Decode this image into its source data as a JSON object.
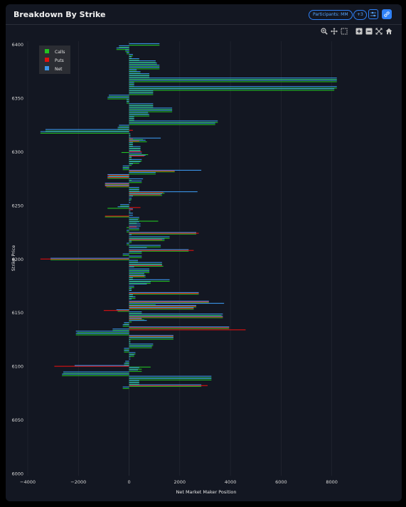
{
  "header": {
    "title": "Breakdown By Strike",
    "participants_label": "Participants: MM",
    "count_badge": "+3"
  },
  "toolbar": {
    "icons": [
      "zoom-in-icon",
      "pan-icon",
      "box-select-icon",
      "zoom-plus-icon",
      "zoom-minus-icon",
      "autoscale-icon",
      "home-icon"
    ]
  },
  "colors": {
    "calls": "#22c122",
    "puts": "#e01010",
    "net": "#3a95e8",
    "background": "#131722",
    "accent": "#2f81f7"
  },
  "chart_data": {
    "type": "bar",
    "orientation": "horizontal",
    "xlabel": "Net Market Maker Position",
    "ylabel": "Strike Price",
    "xlim": [
      -4000,
      10200
    ],
    "ylim": [
      5998,
      6403
    ],
    "xticks": [
      -4000,
      -2000,
      0,
      2000,
      4000,
      6000,
      8000
    ],
    "xtick_labels": [
      "−4000",
      "−2000",
      "0",
      "2000",
      "4000",
      "6000",
      "8000"
    ],
    "yticks": [
      6000,
      6050,
      6100,
      6150,
      6200,
      6250,
      6300,
      6350,
      6400
    ],
    "legend": {
      "placement": "top-left",
      "entries": [
        "Calls",
        "Puts",
        "Net"
      ]
    },
    "grid": true,
    "rows": [
      [
        6400,
        1200,
        0,
        1200
      ],
      [
        6398,
        -400,
        0,
        -400
      ],
      [
        6396,
        -500,
        0,
        -500
      ],
      [
        6394,
        -150,
        0,
        -150
      ],
      [
        6392,
        -100,
        0,
        -100
      ],
      [
        6390,
        150,
        0,
        150
      ],
      [
        6388,
        100,
        0,
        100
      ],
      [
        6386,
        400,
        0,
        400
      ],
      [
        6384,
        1050,
        0,
        1050
      ],
      [
        6382,
        1100,
        0,
        1100
      ],
      [
        6380,
        1200,
        0,
        1200
      ],
      [
        6378,
        1200,
        0,
        1200
      ],
      [
        6376,
        300,
        0,
        300
      ],
      [
        6374,
        450,
        0,
        450
      ],
      [
        6372,
        800,
        0,
        800
      ],
      [
        6370,
        800,
        0,
        800
      ],
      [
        6368,
        8200,
        0,
        8200
      ],
      [
        6366,
        8200,
        0,
        8200
      ],
      [
        6364,
        200,
        0,
        200
      ],
      [
        6362,
        200,
        0,
        200
      ],
      [
        6360,
        8200,
        0,
        8200
      ],
      [
        6358,
        8100,
        0,
        8100
      ],
      [
        6356,
        950,
        0,
        950
      ],
      [
        6354,
        950,
        0,
        950
      ],
      [
        6352,
        -800,
        0,
        -800
      ],
      [
        6350,
        -850,
        0,
        -850
      ],
      [
        6348,
        -100,
        0,
        -100
      ],
      [
        6346,
        -100,
        0,
        -100
      ],
      [
        6344,
        950,
        0,
        950
      ],
      [
        6342,
        950,
        0,
        950
      ],
      [
        6340,
        1700,
        0,
        1700
      ],
      [
        6338,
        1700,
        0,
        1700
      ],
      [
        6336,
        750,
        0,
        750
      ],
      [
        6334,
        800,
        0,
        800
      ],
      [
        6332,
        200,
        0,
        200
      ],
      [
        6330,
        200,
        0,
        200
      ],
      [
        6328,
        3500,
        0,
        3500
      ],
      [
        6326,
        3400,
        0,
        3400
      ],
      [
        6324,
        -400,
        0,
        -400
      ],
      [
        6322,
        -450,
        0,
        -450
      ],
      [
        6320,
        -3300,
        150,
        -3300
      ],
      [
        6318,
        -3500,
        0,
        -3500
      ],
      [
        6316,
        50,
        0,
        50
      ],
      [
        6314,
        50,
        0,
        50
      ],
      [
        6312,
        550,
        150,
        1250
      ],
      [
        6310,
        700,
        400,
        650
      ],
      [
        6308,
        150,
        0,
        150
      ],
      [
        6306,
        150,
        0,
        150
      ],
      [
        6304,
        450,
        0,
        450
      ],
      [
        6302,
        450,
        0,
        450
      ],
      [
        6300,
        -300,
        500,
        450
      ],
      [
        6298,
        750,
        0,
        500
      ],
      [
        6296,
        100,
        600,
        650
      ],
      [
        6294,
        100,
        0,
        100
      ],
      [
        6292,
        500,
        0,
        500
      ],
      [
        6290,
        400,
        0,
        450
      ],
      [
        6288,
        100,
        0,
        150
      ],
      [
        6286,
        -250,
        0,
        -250
      ],
      [
        6284,
        -250,
        0,
        -250
      ],
      [
        6282,
        1800,
        1800,
        2850
      ],
      [
        6280,
        1050,
        0,
        1050
      ],
      [
        6278,
        -800,
        -850,
        -850
      ],
      [
        6276,
        -850,
        -850,
        -850
      ],
      [
        6274,
        100,
        0,
        550
      ],
      [
        6272,
        500,
        0,
        500
      ],
      [
        6270,
        -950,
        -950,
        -950
      ],
      [
        6268,
        -900,
        -950,
        -950
      ],
      [
        6266,
        400,
        0,
        400
      ],
      [
        6264,
        400,
        0,
        400
      ],
      [
        6262,
        1400,
        1350,
        2700
      ],
      [
        6260,
        1300,
        1250,
        1300
      ],
      [
        6258,
        0,
        0,
        150
      ],
      [
        6256,
        100,
        0,
        100
      ],
      [
        6254,
        0,
        0,
        50
      ],
      [
        6252,
        0,
        0,
        50
      ],
      [
        6250,
        -350,
        0,
        -350
      ],
      [
        6248,
        -850,
        450,
        -450
      ],
      [
        6246,
        0,
        150,
        150
      ],
      [
        6244,
        50,
        0,
        50
      ],
      [
        6242,
        0,
        0,
        150
      ],
      [
        6240,
        -950,
        -950,
        150
      ],
      [
        6238,
        400,
        0,
        400
      ],
      [
        6236,
        1150,
        0,
        350
      ],
      [
        6234,
        300,
        0,
        400
      ],
      [
        6232,
        0,
        0,
        450
      ],
      [
        6230,
        -100,
        300,
        450
      ],
      [
        6228,
        400,
        0,
        400
      ],
      [
        6226,
        -100,
        0,
        -100
      ],
      [
        6224,
        2650,
        2750,
        2650
      ],
      [
        6222,
        0,
        0,
        100
      ],
      [
        6220,
        1600,
        0,
        1600
      ],
      [
        6218,
        1400,
        1300,
        1400
      ],
      [
        6216,
        100,
        0,
        100
      ],
      [
        6214,
        -100,
        0,
        -100
      ],
      [
        6212,
        1250,
        0,
        1250
      ],
      [
        6210,
        0,
        0,
        700
      ],
      [
        6208,
        2350,
        2550,
        2350
      ],
      [
        6206,
        500,
        0,
        500
      ],
      [
        6204,
        -250,
        0,
        -250
      ],
      [
        6202,
        500,
        0,
        500
      ],
      [
        6200,
        -3100,
        -3500,
        -3100
      ],
      [
        6198,
        350,
        0,
        350
      ],
      [
        6196,
        1300,
        0,
        1300
      ],
      [
        6194,
        1350,
        1300,
        1300
      ],
      [
        6192,
        0,
        0,
        200
      ],
      [
        6190,
        800,
        0,
        800
      ],
      [
        6188,
        800,
        0,
        800
      ],
      [
        6186,
        600,
        0,
        600
      ],
      [
        6184,
        650,
        600,
        650
      ],
      [
        6182,
        150,
        0,
        150
      ],
      [
        6180,
        1600,
        0,
        1600
      ],
      [
        6178,
        850,
        0,
        850
      ],
      [
        6176,
        0,
        0,
        700
      ],
      [
        6174,
        200,
        0,
        200
      ],
      [
        6172,
        100,
        0,
        100
      ],
      [
        6170,
        0,
        0,
        100
      ],
      [
        6168,
        2750,
        2750,
        2750
      ],
      [
        6166,
        150,
        0,
        150
      ],
      [
        6164,
        250,
        0,
        250
      ],
      [
        6162,
        0,
        0,
        100
      ],
      [
        6160,
        3150,
        3150,
        3150
      ],
      [
        6158,
        1050,
        0,
        3750
      ],
      [
        6156,
        2650,
        2650,
        2650
      ],
      [
        6154,
        2550,
        2550,
        2550
      ],
      [
        6152,
        -450,
        -1000,
        -500
      ],
      [
        6150,
        500,
        0,
        500
      ],
      [
        6148,
        3650,
        0,
        3700
      ],
      [
        6146,
        3700,
        3700,
        3700
      ],
      [
        6144,
        600,
        500,
        500
      ],
      [
        6142,
        100,
        0,
        700
      ],
      [
        6140,
        -200,
        0,
        -200
      ],
      [
        6138,
        -250,
        0,
        -250
      ],
      [
        6136,
        3950,
        3950,
        3950
      ],
      [
        6134,
        -650,
        4600,
        -650
      ],
      [
        6132,
        -2050,
        0,
        -2100
      ],
      [
        6130,
        -2100,
        0,
        -2100
      ],
      [
        6128,
        1750,
        1750,
        1750
      ],
      [
        6126,
        1750,
        0,
        1750
      ],
      [
        6124,
        50,
        0,
        50
      ],
      [
        6122,
        50,
        0,
        50
      ],
      [
        6120,
        950,
        0,
        950
      ],
      [
        6118,
        900,
        0,
        900
      ],
      [
        6116,
        -200,
        0,
        -200
      ],
      [
        6114,
        -200,
        0,
        -200
      ],
      [
        6112,
        250,
        0,
        250
      ],
      [
        6110,
        200,
        0,
        200
      ],
      [
        6108,
        0,
        0,
        50
      ],
      [
        6106,
        0,
        0,
        50
      ],
      [
        6104,
        -150,
        0,
        -150
      ],
      [
        6102,
        -200,
        0,
        -200
      ],
      [
        6100,
        850,
        -2950,
        -2150
      ],
      [
        6098,
        500,
        0,
        400
      ],
      [
        6096,
        500,
        0,
        350
      ],
      [
        6094,
        -2600,
        0,
        -2600
      ],
      [
        6092,
        -2650,
        0,
        -2650
      ],
      [
        6090,
        3250,
        0,
        3250
      ],
      [
        6088,
        3250,
        0,
        3250
      ],
      [
        6086,
        400,
        0,
        400
      ],
      [
        6084,
        400,
        0,
        400
      ],
      [
        6082,
        2850,
        3100,
        2850
      ],
      [
        6080,
        -250,
        0,
        -250
      ]
    ]
  }
}
